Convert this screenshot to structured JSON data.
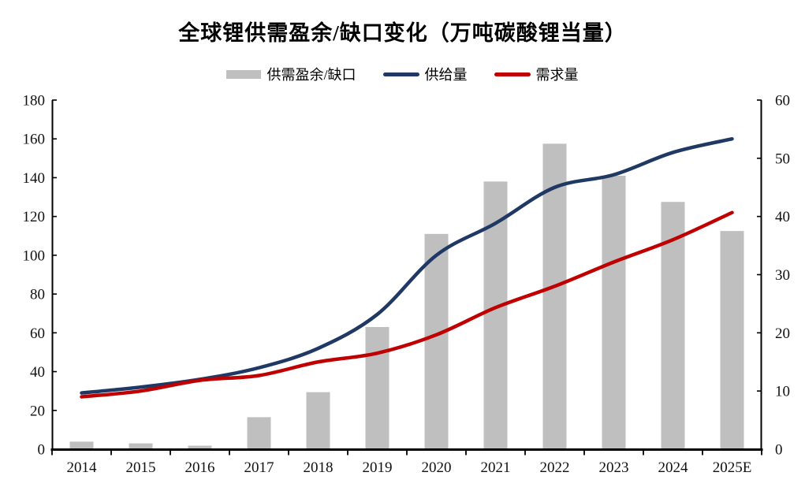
{
  "title": "全球锂供需盈余/缺口变化（万吨碳酸锂当量）",
  "legend": [
    {
      "label": "供需盈余/缺口",
      "marker": "bar-swatch",
      "color": "#bfbfbf"
    },
    {
      "label": "供给量",
      "marker": "line-swatch",
      "color": "#1f3864"
    },
    {
      "label": "需求量",
      "marker": "line-swatch",
      "color": "#c00000"
    }
  ],
  "chart_data": {
    "type": "bar+line",
    "title": "全球锂供需盈余/缺口变化（万吨碳酸锂当量）",
    "categories": [
      "2014",
      "2015",
      "2016",
      "2017",
      "2018",
      "2019",
      "2020",
      "2021",
      "2022",
      "2023",
      "2024",
      "2025E"
    ],
    "series": [
      {
        "name": "供需盈余/缺口",
        "type": "bar",
        "axis": "right",
        "color": "#bfbfbf",
        "values": [
          1.3,
          1.0,
          0.6,
          5.5,
          9.8,
          21.0,
          37.0,
          46.0,
          52.5,
          47.0,
          42.5,
          37.5
        ]
      },
      {
        "name": "供给量",
        "type": "line",
        "axis": "left",
        "color": "#1f3864",
        "values": [
          29,
          32,
          36,
          42,
          52,
          69.5,
          100,
          116.5,
          135,
          141.5,
          153,
          160
        ]
      },
      {
        "name": "需求量",
        "type": "line",
        "axis": "left",
        "color": "#c00000",
        "values": [
          27,
          30,
          35.5,
          38,
          45,
          49.5,
          59,
          73,
          84,
          96.5,
          108,
          122
        ]
      }
    ],
    "left_axis": {
      "min": 0,
      "max": 180,
      "step": 20,
      "ticks": [
        0,
        20,
        40,
        60,
        80,
        100,
        120,
        140,
        160,
        180
      ]
    },
    "right_axis": {
      "min": 0,
      "max": 60,
      "step": 10,
      "ticks": [
        0,
        10,
        20,
        30,
        40,
        50,
        60
      ]
    },
    "grid": false,
    "legend_position": "top",
    "background": "#ffffff"
  }
}
